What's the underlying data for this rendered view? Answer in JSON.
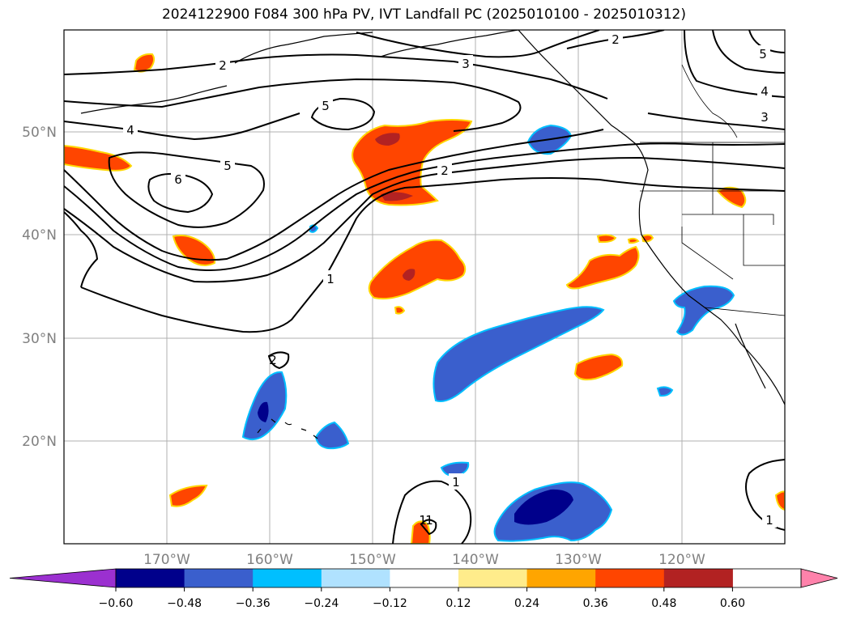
{
  "title": "2024122900 F084 300 hPa PV, IVT Landfall PC (2025010100 - 2025010312)",
  "lat_labels": [
    "50°N",
    "40°N",
    "30°N",
    "20°N"
  ],
  "lon_labels": [
    "170°W",
    "160°W",
    "150°W",
    "140°W",
    "130°W",
    "120°W"
  ],
  "colorbar": {
    "tick_labels": [
      "−0.60",
      "−0.48",
      "−0.36",
      "−0.24",
      "−0.12",
      "0.12",
      "0.24",
      "0.36",
      "0.48",
      "0.60"
    ],
    "colors": [
      "#9b30d0",
      "#00008b",
      "#3a5fcd",
      "#00bfff",
      "#b0e2ff",
      "#ffffff",
      "#ffec8b",
      "#ffa500",
      "#ff4500",
      "#b22222",
      "#ff82ab"
    ]
  },
  "contour_labels": [
    "2",
    "3",
    "5",
    "4",
    "3",
    "5",
    "4",
    "6",
    "5",
    "2",
    "1",
    "1",
    "1",
    "1",
    "2",
    "2",
    "1"
  ],
  "colors": {
    "orange_red": "#ff4500",
    "dark_red": "#b22222",
    "gold": "#ffd700",
    "royal_blue": "#3a5fcd",
    "navy": "#00008b",
    "sky": "#00bfff"
  }
}
